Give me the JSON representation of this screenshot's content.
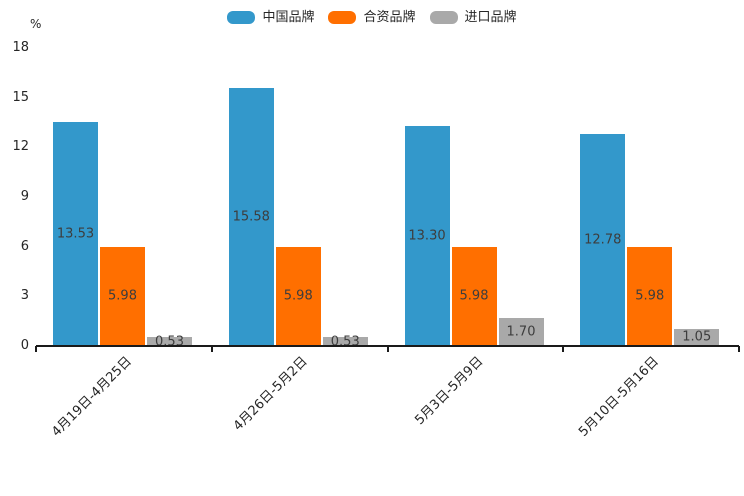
{
  "chart": {
    "unit_label": "%",
    "colors": {
      "series_blue": "#3398cb",
      "series_orange": "#ff6f00",
      "series_gray": "#a9a9a9",
      "axis": "#1a1a1a",
      "tick_text": "#262626",
      "value_text": "#3d3d3d"
    }
  },
  "chart_data": {
    "type": "bar",
    "title": "",
    "categories": [
      "4月19日-4月25日",
      "4月26日-5月2日",
      "5月3日-5月9日",
      "5月10日-5月16日"
    ],
    "series": [
      {
        "name": "中国品牌",
        "color": "#3398cb",
        "values": [
          13.53,
          15.58,
          13.3,
          12.78
        ]
      },
      {
        "name": "合资品牌",
        "color": "#ff6f00",
        "values": [
          5.98,
          5.98,
          5.98,
          5.98
        ]
      },
      {
        "name": "进口品牌",
        "color": "#a9a9a9",
        "values": [
          0.53,
          0.53,
          1.7,
          1.05
        ]
      }
    ],
    "xlabel": "",
    "ylabel": "%",
    "ylim": [
      0,
      18
    ],
    "yticks": [
      0,
      3,
      6,
      9,
      12,
      15,
      18
    ],
    "grid": false,
    "legend_position": "top-center",
    "value_labels": true,
    "value_label_format": "0.00",
    "x_tick_rotation_deg": 45
  }
}
